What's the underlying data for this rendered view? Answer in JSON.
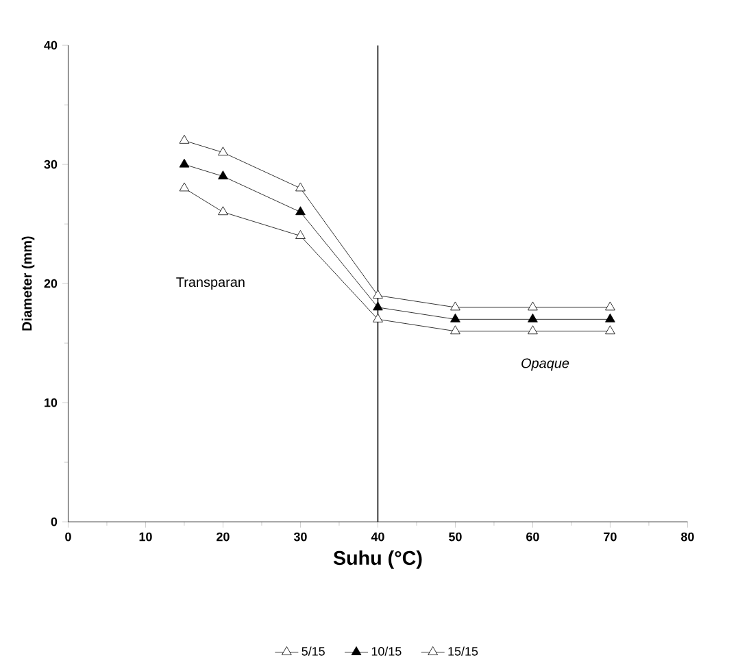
{
  "chart_data": {
    "type": "line",
    "xlabel": "Suhu (°C)",
    "ylabel": "Diameter (mm)",
    "x": [
      15,
      20,
      30,
      40,
      50,
      60,
      70
    ],
    "series": [
      {
        "name": "5/15",
        "color": "#ffffff",
        "values": [
          32,
          31,
          28,
          19,
          18,
          18,
          18
        ]
      },
      {
        "name": "10/15",
        "color": "#000000",
        "values": [
          30,
          29,
          26,
          18,
          17,
          17,
          17
        ]
      },
      {
        "name": "15/15",
        "color": "#ffffff",
        "values": [
          28,
          26,
          24,
          17,
          16,
          16,
          16
        ]
      }
    ],
    "marker": "triangle",
    "line_style": "solid",
    "grid": false,
    "legend": "bottom",
    "xlim": [
      0,
      80
    ],
    "ylim": [
      0,
      40
    ],
    "xticks": [
      0,
      10,
      20,
      30,
      40,
      50,
      60,
      70,
      80
    ],
    "yticks": [
      0,
      10,
      20,
      30,
      40
    ],
    "ref_lines": [
      {
        "axis": "x",
        "value": 40,
        "color": "#000000"
      }
    ],
    "annotations": [
      "Transparan",
      "Opaque"
    ]
  }
}
